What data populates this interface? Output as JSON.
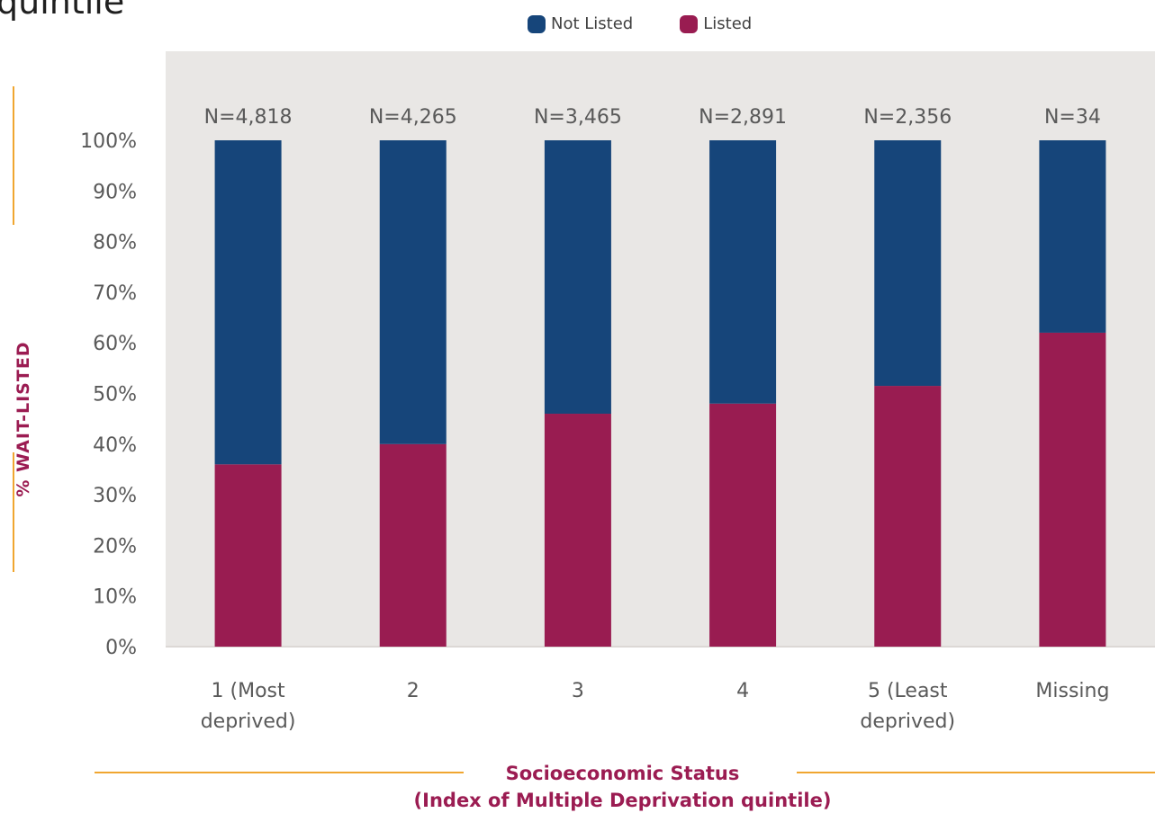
{
  "page": {
    "title_fragment": "quintile"
  },
  "legend": [
    {
      "label": "Not Listed",
      "color": "#16457a"
    },
    {
      "label": "Listed",
      "color": "#991c51"
    }
  ],
  "chart_data": {
    "type": "bar",
    "stacked": true,
    "categories": [
      "1 (Most deprived)",
      "2",
      "3",
      "4",
      "5 (Least deprived)",
      "Missing"
    ],
    "category_lines": [
      [
        "1 (Most",
        "deprived)"
      ],
      [
        "2"
      ],
      [
        "3"
      ],
      [
        "4"
      ],
      [
        "5 (Least",
        "deprived)"
      ],
      [
        "Missing"
      ]
    ],
    "n_labels": [
      "N=4,818",
      "N=4,265",
      "N=3,465",
      "N=2,891",
      "N=2,356",
      "N=34"
    ],
    "series": [
      {
        "name": "Listed",
        "color": "#991c51",
        "values": [
          36,
          40,
          46,
          48,
          51.5,
          62
        ]
      },
      {
        "name": "Not Listed",
        "color": "#16457a",
        "values": [
          64,
          60,
          54,
          52,
          48.5,
          38
        ]
      }
    ],
    "ylabel": "% WAIT-LISTED",
    "xlabel_line1": "Socioeconomic Status",
    "xlabel_line2": "(Index of Multiple Deprivation quintile)",
    "ylim": [
      0,
      100
    ],
    "yticks": [
      "0%",
      "10%",
      "20%",
      "30%",
      "40%",
      "50%",
      "60%",
      "70%",
      "80%",
      "90%",
      "100%"
    ],
    "plot_background": "#e9e7e5",
    "accent_line_color": "#f0a630",
    "label_color": "#9b1c52"
  }
}
